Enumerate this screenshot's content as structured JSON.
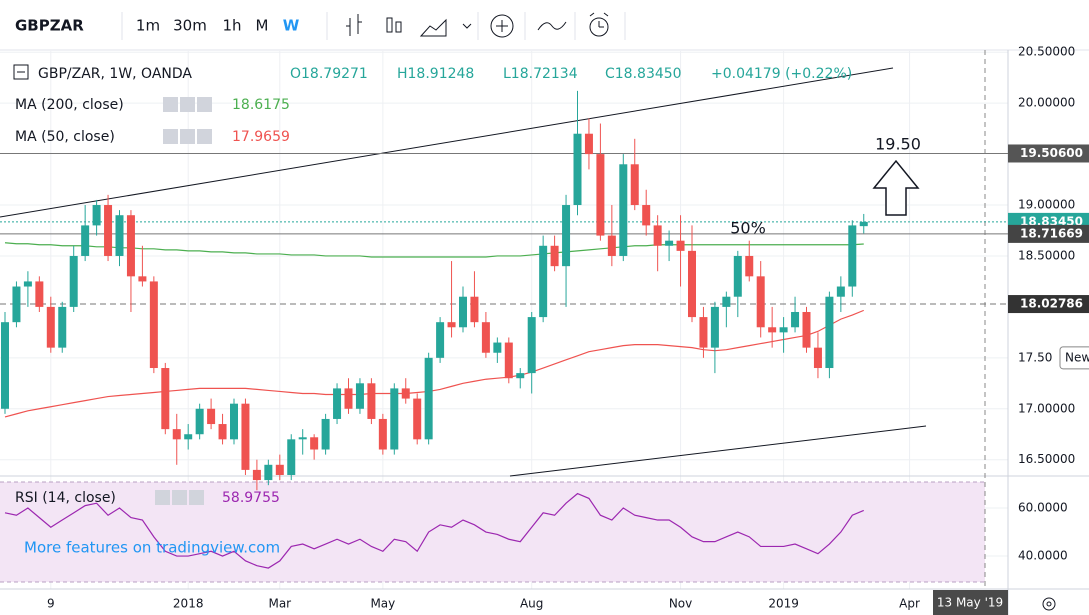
{
  "toolbar": {
    "symbol": "GBPZAR",
    "intervals": [
      "1m",
      "30m",
      "1h",
      "M",
      "W"
    ],
    "active_interval": 4
  },
  "chart_data": [
    {
      "type": "candlestick",
      "title": "GBP/ZAR, 1W, OANDA",
      "ohlc_labels": [
        "O18.79271",
        "H18.91248",
        "L18.72134",
        "C18.83450"
      ],
      "change_label": "+0.04179 (+0.22%)",
      "categories": [
        null,
        null,
        null,
        null,
        "9",
        null,
        null,
        null,
        null,
        null,
        null,
        null,
        null,
        null,
        null,
        null,
        "2018",
        null,
        null,
        null,
        null,
        null,
        null,
        null,
        "Mar",
        null,
        null,
        null,
        null,
        null,
        null,
        null,
        null,
        "May",
        null,
        null,
        null,
        null,
        null,
        null,
        null,
        null,
        null,
        null,
        null,
        null,
        "Aug",
        null,
        null,
        null,
        null,
        null,
        null,
        null,
        null,
        null,
        null,
        null,
        null,
        "Nov",
        null,
        null,
        null,
        null,
        null,
        null,
        null,
        null,
        "2019",
        null,
        null,
        null,
        null,
        null,
        null,
        null,
        null,
        null,
        null,
        "Apr"
      ],
      "open": [
        17.0,
        17.85,
        18.2,
        18.25,
        18.0,
        17.6,
        18.0,
        18.5,
        18.8,
        19.0,
        18.5,
        18.9,
        18.3,
        18.25,
        17.4,
        16.8,
        16.7,
        16.75,
        17.0,
        16.85,
        16.7,
        17.05,
        16.4,
        16.3,
        16.45,
        16.35,
        16.7,
        16.72,
        16.6,
        16.9,
        17.2,
        17.0,
        17.25,
        16.9,
        16.6,
        17.2,
        17.1,
        16.7,
        17.5,
        17.85,
        17.8,
        18.1,
        17.85,
        17.55,
        17.65,
        17.3,
        17.35,
        17.9,
        18.6,
        18.4,
        19.0,
        19.7,
        19.5,
        18.7,
        18.5,
        19.4,
        19.0,
        18.8,
        18.6,
        18.65,
        18.55,
        17.9,
        17.6,
        18.0,
        18.1,
        18.5,
        18.3,
        17.8,
        17.75,
        17.8,
        17.95,
        17.6,
        17.4,
        18.1,
        18.2,
        18.79271,
        null,
        null,
        null,
        null
      ],
      "high": [
        17.95,
        18.25,
        18.35,
        18.3,
        18.1,
        18.05,
        18.6,
        19.0,
        19.05,
        19.1,
        18.95,
        18.95,
        18.6,
        18.3,
        17.45,
        16.95,
        16.85,
        17.05,
        17.1,
        16.95,
        17.1,
        17.1,
        16.5,
        16.5,
        16.55,
        16.75,
        16.8,
        16.75,
        16.95,
        17.25,
        17.3,
        17.3,
        17.3,
        16.95,
        17.25,
        17.3,
        17.15,
        17.55,
        17.9,
        18.45,
        18.2,
        18.35,
        17.95,
        17.7,
        17.7,
        17.4,
        17.95,
        18.7,
        18.7,
        19.1,
        20.12,
        19.85,
        19.8,
        19.0,
        19.5,
        19.65,
        19.15,
        18.9,
        18.75,
        18.9,
        18.8,
        18.0,
        18.05,
        18.15,
        18.55,
        18.65,
        18.45,
        18.0,
        17.9,
        18.1,
        18.0,
        17.75,
        18.15,
        18.3,
        18.85,
        18.91248,
        null,
        null,
        null,
        null
      ],
      "low": [
        16.95,
        17.8,
        18.0,
        17.95,
        17.55,
        17.55,
        17.95,
        18.45,
        18.7,
        18.45,
        18.4,
        17.95,
        18.2,
        17.35,
        16.75,
        16.45,
        16.6,
        16.7,
        16.8,
        16.65,
        16.65,
        16.35,
        16.2,
        16.25,
        16.3,
        16.3,
        16.55,
        16.5,
        16.55,
        16.85,
        16.95,
        16.95,
        16.85,
        16.55,
        16.55,
        17.05,
        16.65,
        16.65,
        17.45,
        17.7,
        17.75,
        17.8,
        17.5,
        17.45,
        17.25,
        17.2,
        17.15,
        17.85,
        18.35,
        18.0,
        18.9,
        19.35,
        18.65,
        18.4,
        18.45,
        18.95,
        18.7,
        18.35,
        18.45,
        18.2,
        17.85,
        17.5,
        17.35,
        17.8,
        17.9,
        18.25,
        17.7,
        17.6,
        17.55,
        17.75,
        17.55,
        17.3,
        17.3,
        17.95,
        18.1,
        18.72134,
        null,
        null,
        null,
        null
      ],
      "close": [
        17.85,
        18.2,
        18.25,
        18.0,
        17.6,
        18.0,
        18.5,
        18.8,
        19.0,
        18.5,
        18.9,
        18.3,
        18.25,
        17.4,
        16.8,
        16.7,
        16.75,
        17.0,
        16.85,
        16.7,
        17.05,
        16.4,
        16.3,
        16.45,
        16.35,
        16.7,
        16.72,
        16.6,
        16.9,
        17.2,
        17.0,
        17.25,
        16.9,
        16.6,
        17.2,
        17.1,
        16.7,
        17.5,
        17.85,
        17.8,
        18.1,
        17.85,
        17.55,
        17.65,
        17.3,
        17.35,
        17.9,
        18.6,
        18.4,
        19.0,
        19.7,
        19.5,
        18.7,
        18.5,
        19.4,
        19.0,
        18.8,
        18.6,
        18.65,
        18.55,
        17.9,
        17.6,
        18.0,
        18.1,
        18.5,
        18.3,
        17.8,
        17.75,
        17.8,
        17.95,
        17.6,
        17.4,
        18.1,
        18.2,
        18.8,
        18.8345,
        null,
        null,
        null,
        null
      ],
      "up_color": "#26a69a",
      "down_color": "#ef5350",
      "series": [
        {
          "name": "MA (200, close)",
          "color": "#4caf50",
          "values": [
            18.63,
            18.62,
            18.62,
            18.61,
            18.61,
            18.6,
            18.6,
            18.6,
            18.59,
            18.59,
            18.58,
            18.58,
            18.57,
            18.57,
            18.56,
            18.56,
            18.55,
            18.55,
            18.54,
            18.54,
            18.53,
            18.53,
            18.52,
            18.52,
            18.52,
            18.51,
            18.51,
            18.51,
            18.5,
            18.5,
            18.5,
            18.5,
            18.49,
            18.49,
            18.49,
            18.49,
            18.49,
            18.49,
            18.49,
            18.49,
            18.49,
            18.49,
            18.49,
            18.5,
            18.5,
            18.5,
            18.51,
            18.52,
            18.53,
            18.54,
            18.55,
            18.56,
            18.57,
            18.58,
            18.59,
            18.6,
            18.6,
            18.61,
            18.61,
            18.61,
            18.61,
            18.61,
            18.61,
            18.61,
            18.61,
            18.61,
            18.61,
            18.61,
            18.61,
            18.61,
            18.61,
            18.61,
            18.61,
            18.61,
            18.61,
            18.6175,
            null,
            null,
            null,
            null
          ]
        },
        {
          "name": "MA (50, close)",
          "color": "#ef5350",
          "values": [
            16.92,
            16.95,
            16.98,
            17.0,
            17.02,
            17.04,
            17.06,
            17.08,
            17.1,
            17.12,
            17.13,
            17.14,
            17.15,
            17.16,
            17.17,
            17.18,
            17.19,
            17.2,
            17.2,
            17.2,
            17.2,
            17.2,
            17.19,
            17.18,
            17.17,
            17.16,
            17.15,
            17.15,
            17.14,
            17.14,
            17.14,
            17.14,
            17.15,
            17.15,
            17.15,
            17.15,
            17.16,
            17.17,
            17.19,
            17.22,
            17.25,
            17.27,
            17.29,
            17.3,
            17.31,
            17.33,
            17.36,
            17.4,
            17.44,
            17.48,
            17.52,
            17.56,
            17.58,
            17.6,
            17.62,
            17.63,
            17.63,
            17.63,
            17.62,
            17.61,
            17.6,
            17.58,
            17.57,
            17.58,
            17.6,
            17.62,
            17.64,
            17.66,
            17.68,
            17.7,
            17.72,
            17.76,
            17.82,
            17.88,
            17.92,
            17.9659,
            null,
            null,
            null,
            null
          ]
        }
      ],
      "ylim": [
        16.34,
        20.62
      ],
      "yticks": [
        {
          "value": 16.5,
          "label": "16.50000"
        },
        {
          "value": 17.0,
          "label": "17.00000"
        },
        {
          "value": 17.5,
          "label": "17.50"
        },
        {
          "value": 18.5,
          "label": "18.50000"
        },
        {
          "value": 19.0,
          "label": "19.00000"
        },
        {
          "value": 20.0,
          "label": "20.00000"
        },
        {
          "value": 20.5,
          "label": "20.50000"
        }
      ],
      "price_lines": [
        {
          "value": 19.506,
          "label": "19.50600",
          "color": "#555555"
        },
        {
          "value": 18.8345,
          "label": "18.83450",
          "color": "#26a69a"
        },
        {
          "value": 18.71669,
          "label": "18.71669",
          "color": "#444444"
        },
        {
          "value": 18.02786,
          "label": "18.02786",
          "color": "#333333"
        }
      ],
      "annotations": [
        "19.50",
        "50%"
      ],
      "badge": "New",
      "cursor_label": "13 May '19",
      "grid": true
    },
    {
      "type": "line",
      "series": [
        {
          "name": "RSI (14, close)",
          "color": "#9c27b0",
          "values": [
            58,
            57,
            60,
            56,
            52,
            55,
            58,
            61,
            62,
            57,
            60,
            56,
            55,
            48,
            42,
            40,
            40,
            41,
            42,
            40,
            42,
            38,
            36,
            35,
            38,
            44,
            45,
            43,
            45,
            47,
            45,
            47,
            44,
            42,
            47,
            46,
            42,
            50,
            53,
            52,
            55,
            53,
            50,
            49,
            47,
            46,
            52,
            58,
            57,
            62,
            66,
            64,
            57,
            55,
            60,
            57,
            56,
            55,
            55,
            52,
            48,
            46,
            46,
            48,
            50,
            48,
            44,
            44,
            44,
            45,
            43,
            41,
            45,
            50,
            57,
            58.9755,
            null,
            null,
            null,
            null
          ]
        }
      ],
      "ylim": [
        29.2,
        72.5
      ],
      "yticks": [
        {
          "value": 40,
          "label": "40.0000"
        },
        {
          "value": 60,
          "label": "60.0000"
        }
      ],
      "watermark": "More features on tradingview.com",
      "grid": true
    }
  ]
}
